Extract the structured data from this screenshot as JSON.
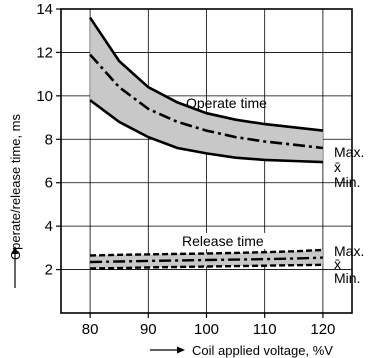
{
  "chart_data": {
    "type": "line",
    "title": "",
    "xlabel": "Coil applied voltage, %V",
    "ylabel": "Operate/release time, ms",
    "xlim": [
      75,
      125
    ],
    "ylim": [
      0,
      14
    ],
    "x_ticks": [
      80,
      90,
      100,
      110,
      120
    ],
    "y_ticks": [
      2,
      4,
      6,
      8,
      10,
      12,
      14
    ],
    "x_tick_labels": [
      "80",
      "90",
      "100",
      "110",
      "120"
    ],
    "y_tick_labels": [
      "2",
      "4",
      "6",
      "8",
      "10",
      "12",
      "14"
    ],
    "grid": true,
    "annotations": {
      "operate_time": "Operate time",
      "release_time": "Release time",
      "max": "Max.",
      "mean": "x̄",
      "min": "Min."
    },
    "x": [
      80,
      85,
      90,
      95,
      100,
      105,
      110,
      115,
      120
    ],
    "groups": [
      {
        "group": "operate",
        "series": [
          {
            "stat": "max",
            "values": [
              13.6,
              11.6,
              10.4,
              9.7,
              9.2,
              8.9,
              8.7,
              8.55,
              8.4
            ]
          },
          {
            "stat": "mean",
            "values": [
              11.9,
              10.4,
              9.4,
              8.8,
              8.4,
              8.1,
              7.9,
              7.75,
              7.6
            ]
          },
          {
            "stat": "min",
            "values": [
              9.8,
              8.8,
              8.1,
              7.6,
              7.35,
              7.15,
              7.05,
              7.0,
              6.95
            ]
          }
        ]
      },
      {
        "group": "release",
        "series": [
          {
            "stat": "max",
            "values": [
              2.65,
              2.68,
              2.7,
              2.72,
              2.74,
              2.77,
              2.8,
              2.84,
              2.9
            ]
          },
          {
            "stat": "mean",
            "values": [
              2.35,
              2.37,
              2.4,
              2.42,
              2.44,
              2.46,
              2.48,
              2.51,
              2.55
            ]
          },
          {
            "stat": "min",
            "values": [
              2.05,
              2.07,
              2.1,
              2.12,
              2.14,
              2.16,
              2.18,
              2.2,
              2.22
            ]
          }
        ]
      }
    ],
    "colors": {
      "band_fill": "#c8c8c8",
      "line": "#000000",
      "grid": "#000000"
    }
  }
}
